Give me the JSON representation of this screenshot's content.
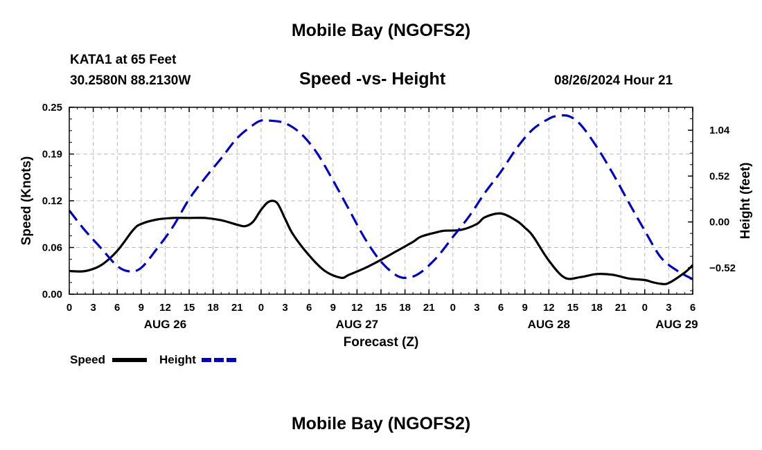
{
  "header": {
    "title": "Mobile Bay (NGOFS2)",
    "station_name": "KATA1 at 65 Feet",
    "coordinates": "30.2580N  88.2130W",
    "forecast_time": "08/26/2024 Hour 21"
  },
  "footer": {
    "title": "Mobile Bay (NGOFS2)"
  },
  "colors": {
    "speed": "#000000",
    "height": "#0000cc",
    "grid": "#bbbbbb"
  },
  "chart_data": {
    "type": "line",
    "title": "Speed -vs- Height",
    "xlabel": "Forecast (Z)",
    "ylabel": "Speed (Knots)",
    "y2label": "Height (feet)",
    "x_range_hours": [
      0,
      78
    ],
    "x_ticks": [
      {
        "h": 0,
        "label": "0"
      },
      {
        "h": 3,
        "label": "3"
      },
      {
        "h": 6,
        "label": "6"
      },
      {
        "h": 9,
        "label": "9"
      },
      {
        "h": 12,
        "label": "12"
      },
      {
        "h": 15,
        "label": "15"
      },
      {
        "h": 18,
        "label": "18"
      },
      {
        "h": 21,
        "label": "21"
      },
      {
        "h": 24,
        "label": "0"
      },
      {
        "h": 27,
        "label": "3"
      },
      {
        "h": 30,
        "label": "6"
      },
      {
        "h": 33,
        "label": "9"
      },
      {
        "h": 36,
        "label": "12"
      },
      {
        "h": 39,
        "label": "15"
      },
      {
        "h": 42,
        "label": "18"
      },
      {
        "h": 45,
        "label": "21"
      },
      {
        "h": 48,
        "label": "0"
      },
      {
        "h": 51,
        "label": "3"
      },
      {
        "h": 54,
        "label": "6"
      },
      {
        "h": 57,
        "label": "9"
      },
      {
        "h": 60,
        "label": "12"
      },
      {
        "h": 63,
        "label": "15"
      },
      {
        "h": 66,
        "label": "18"
      },
      {
        "h": 69,
        "label": "21"
      },
      {
        "h": 72,
        "label": "0"
      },
      {
        "h": 75,
        "label": "3"
      },
      {
        "h": 78,
        "label": "6"
      }
    ],
    "date_labels": [
      {
        "h": 12,
        "label": "AUG 26"
      },
      {
        "h": 36,
        "label": "AUG 27"
      },
      {
        "h": 60,
        "label": "AUG 28"
      },
      {
        "h": 76,
        "label": "AUG 29"
      }
    ],
    "ylim": [
      0,
      0.25
    ],
    "y_ticks": [
      "0.00",
      "0.06",
      "0.12",
      "0.19",
      "0.25"
    ],
    "y2lim": [
      -0.82,
      1.3
    ],
    "y2_ticks": [
      {
        "v": -0.52,
        "label": "−0.52"
      },
      {
        "v": 0.0,
        "label": "0.00"
      },
      {
        "v": 0.52,
        "label": "0.52"
      },
      {
        "v": 1.04,
        "label": "1.04"
      }
    ],
    "series": [
      {
        "name": "Speed",
        "axis": "left",
        "style": "solid",
        "x": [
          0,
          2,
          4,
          6,
          8,
          9,
          11,
          13,
          15,
          17,
          19,
          21,
          22,
          23,
          24,
          25,
          26,
          27,
          28,
          30,
          32,
          34,
          35,
          37,
          39,
          41,
          43,
          44,
          46,
          47,
          49,
          51,
          52,
          54,
          56,
          57,
          58,
          60,
          62,
          64,
          66,
          68,
          70,
          72,
          73,
          74,
          75,
          77,
          78
        ],
        "y": [
          0.031,
          0.031,
          0.039,
          0.058,
          0.086,
          0.094,
          0.1,
          0.102,
          0.102,
          0.102,
          0.099,
          0.093,
          0.091,
          0.097,
          0.113,
          0.124,
          0.122,
          0.101,
          0.08,
          0.052,
          0.031,
          0.022,
          0.026,
          0.035,
          0.046,
          0.058,
          0.07,
          0.077,
          0.083,
          0.085,
          0.086,
          0.094,
          0.103,
          0.108,
          0.098,
          0.089,
          0.078,
          0.045,
          0.022,
          0.023,
          0.027,
          0.026,
          0.021,
          0.019,
          0.016,
          0.014,
          0.015,
          0.029,
          0.039
        ]
      },
      {
        "name": "Height",
        "axis": "right",
        "style": "dashed",
        "x": [
          0,
          2,
          4,
          6,
          7.5,
          9,
          11,
          13,
          15,
          17,
          19,
          21,
          23,
          24,
          25,
          27,
          29,
          31,
          33,
          35,
          37,
          39,
          41,
          42.5,
          44,
          46,
          48,
          50,
          52,
          54,
          56,
          58,
          60,
          61,
          62.5,
          64,
          66,
          68,
          70,
          72,
          74,
          76,
          78
        ],
        "y": [
          0.13,
          -0.1,
          -0.3,
          -0.5,
          -0.56,
          -0.52,
          -0.3,
          -0.05,
          0.26,
          0.5,
          0.72,
          0.95,
          1.1,
          1.15,
          1.15,
          1.12,
          1.0,
          0.78,
          0.47,
          0.14,
          -0.19,
          -0.45,
          -0.61,
          -0.63,
          -0.57,
          -0.4,
          -0.17,
          0.06,
          0.33,
          0.57,
          0.84,
          1.05,
          1.17,
          1.2,
          1.2,
          1.1,
          0.85,
          0.55,
          0.22,
          -0.1,
          -0.4,
          -0.55,
          -0.65
        ]
      }
    ],
    "legend": [
      {
        "label": "Speed",
        "style": "solid"
      },
      {
        "label": "Height",
        "style": "dashed"
      }
    ]
  }
}
